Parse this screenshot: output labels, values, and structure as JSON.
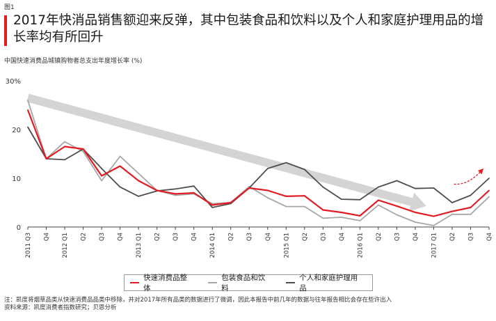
{
  "figure_label": "图1",
  "title": "2017年快消品销售额迎来反弹，其中包装食品和饮料以及个人和家庭护理用品的增长率均有所回升",
  "chart_data": {
    "type": "line",
    "subtitle": "中国快速消费品城镇购物者总支出年度增长率 (%)",
    "y_unit": "%",
    "ylim": [
      0,
      30
    ],
    "y_ticks": [
      "0",
      "10",
      "20",
      "30%"
    ],
    "x_tick_labels": [
      "2011 Q3",
      "Q4",
      "2012 Q1",
      "Q2",
      "Q3",
      "Q4",
      "2013 Q1",
      "Q2",
      "Q3",
      "Q4",
      "2014 Q1",
      "Q2",
      "Q3",
      "Q4",
      "2015 Q1",
      "Q2",
      "Q3",
      "Q4",
      "2016 Q1",
      "Q2",
      "Q3",
      "Q4",
      "2017 Q1",
      "Q2",
      "Q3",
      "Q4"
    ],
    "series": [
      {
        "name": "快速消费品整体",
        "color": "#e31b23",
        "values": [
          24,
          14,
          16.5,
          16,
          10.5,
          12.5,
          9.5,
          7.5,
          6.8,
          7,
          4.5,
          5,
          8,
          7.5,
          6.3,
          6.4,
          3.5,
          3,
          2.3,
          5.5,
          4.3,
          3,
          2.2,
          3.2,
          4,
          7.5
        ]
      },
      {
        "name": "包装食品和饮料",
        "color": "#a6a6a6",
        "values": [
          26,
          14,
          17.5,
          15.5,
          9.5,
          14.5,
          11,
          7.5,
          6.5,
          6.8,
          4.8,
          5,
          8.3,
          6,
          4.2,
          4.2,
          1.8,
          2,
          1.3,
          4.5,
          2.5,
          1,
          0.3,
          2.6,
          2.6,
          6.2
        ]
      },
      {
        "name": "个人和家庭护理用品",
        "color": "#4d4d4d",
        "values": [
          20.5,
          14,
          13.8,
          16,
          12,
          8.2,
          6.3,
          7.4,
          7.8,
          8.4,
          4,
          4.8,
          8,
          12,
          13.2,
          11.8,
          8.2,
          5.7,
          5.6,
          8.2,
          9.5,
          7.9,
          8,
          5,
          6.5,
          10
        ]
      }
    ]
  },
  "note": "注：凯度将烟草品类从快速消费品品类中移除，并对2017年所有品类的数据进行了微调，因此本报告中前几年的数据与往年报告相比会存在些许出入",
  "source": "资料来源：凯度消费者指数研究；贝恩分析"
}
